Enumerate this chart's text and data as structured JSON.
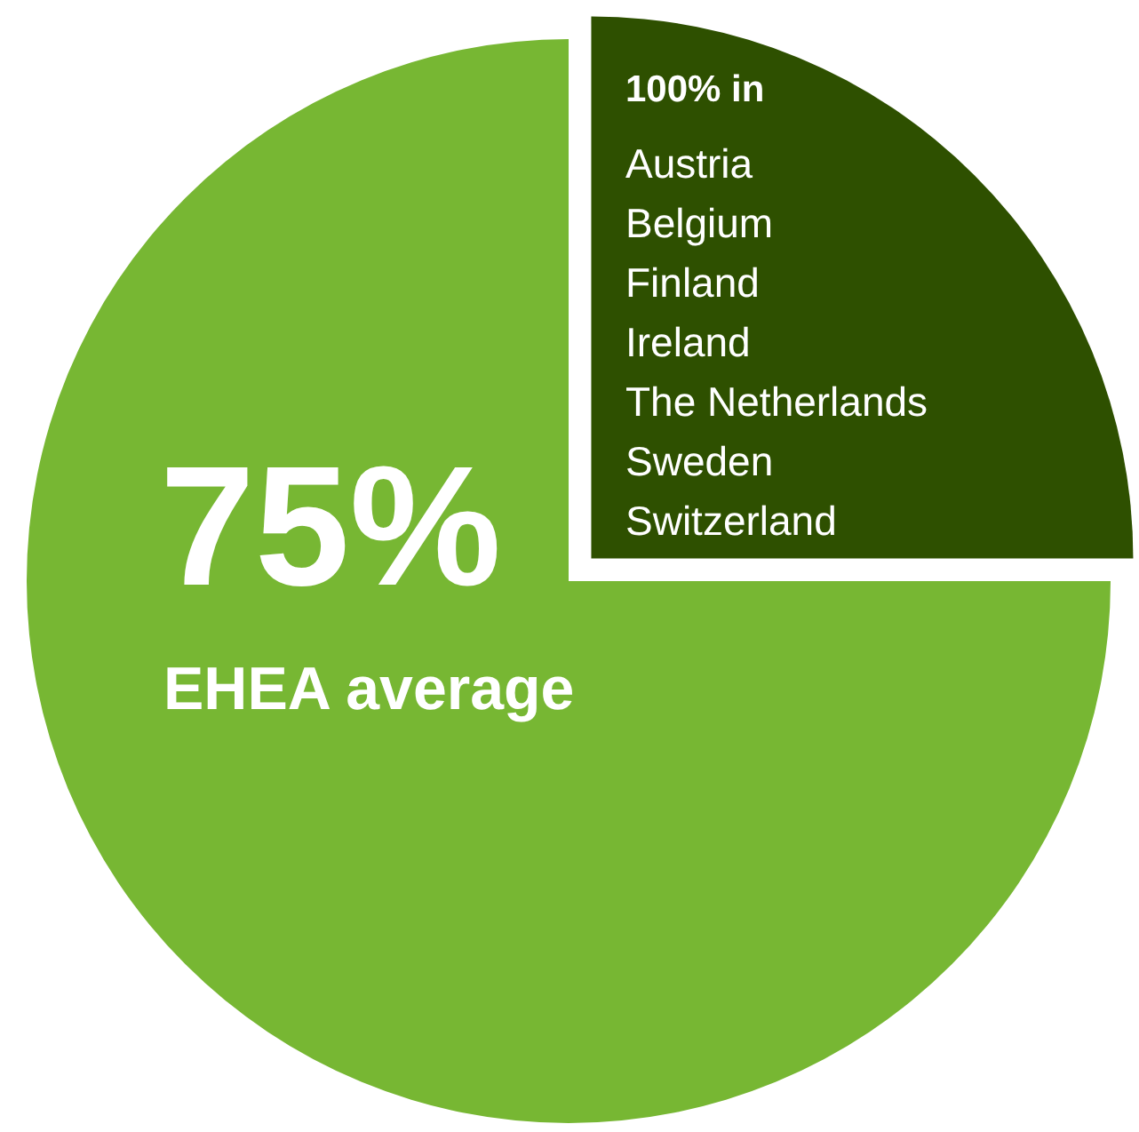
{
  "chart_data": {
    "type": "pie",
    "categories": [
      "EHEA average",
      "100% in"
    ],
    "values": [
      75,
      25
    ],
    "value_labels": [
      "75%",
      null
    ],
    "colors": [
      "#77b733",
      "#2e5000"
    ],
    "annotations": [
      "Austria",
      "Belgium",
      "Finland",
      "Ireland",
      "The Netherlands",
      "Sweden",
      "Switzerland"
    ],
    "legend": false
  }
}
